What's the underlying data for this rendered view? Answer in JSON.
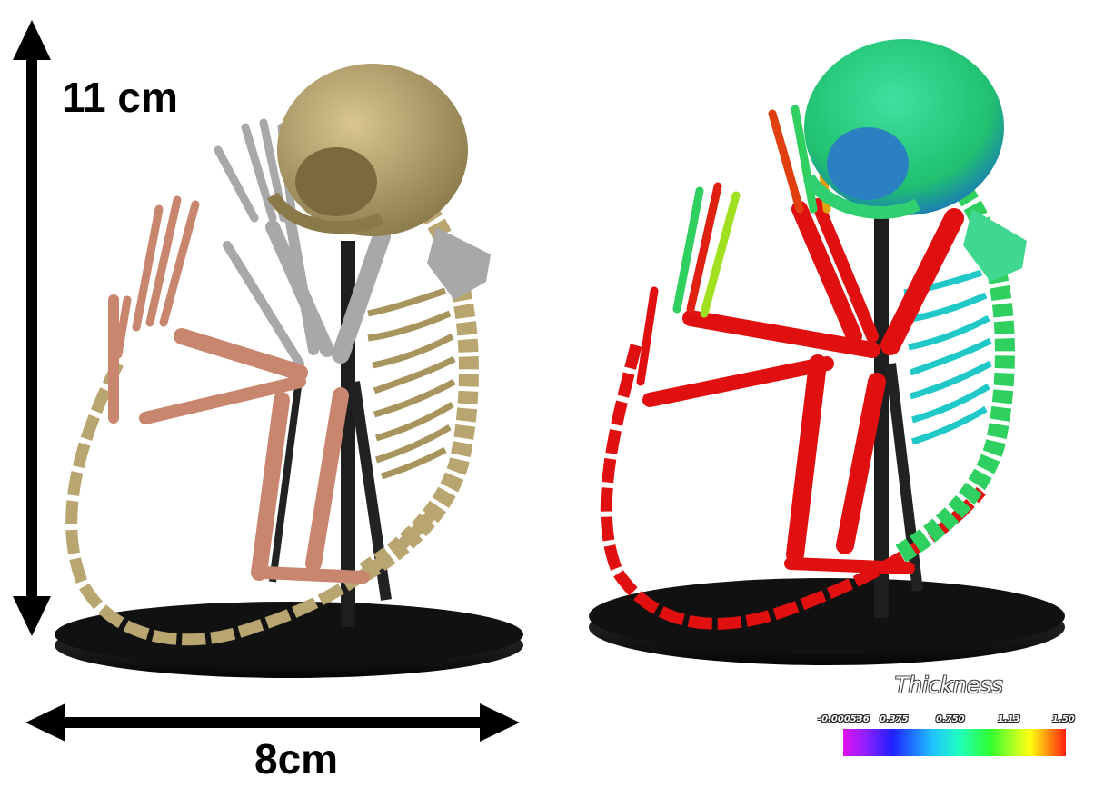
{
  "figure": {
    "height_label": "11 cm",
    "width_label": "8cm",
    "legend": {
      "title": "Thickness",
      "ticks": [
        "-0.000536",
        "0.375",
        "0.750",
        "1.13",
        "1.50"
      ]
    }
  },
  "colors": {
    "bone_tan": "#b8a570",
    "bone_grey": "#a8a8a8",
    "bone_pink": "#c8866e",
    "stand": "#1a1a1a",
    "thick_red": "#e01010",
    "thin_cyan": "#20c8c8"
  }
}
